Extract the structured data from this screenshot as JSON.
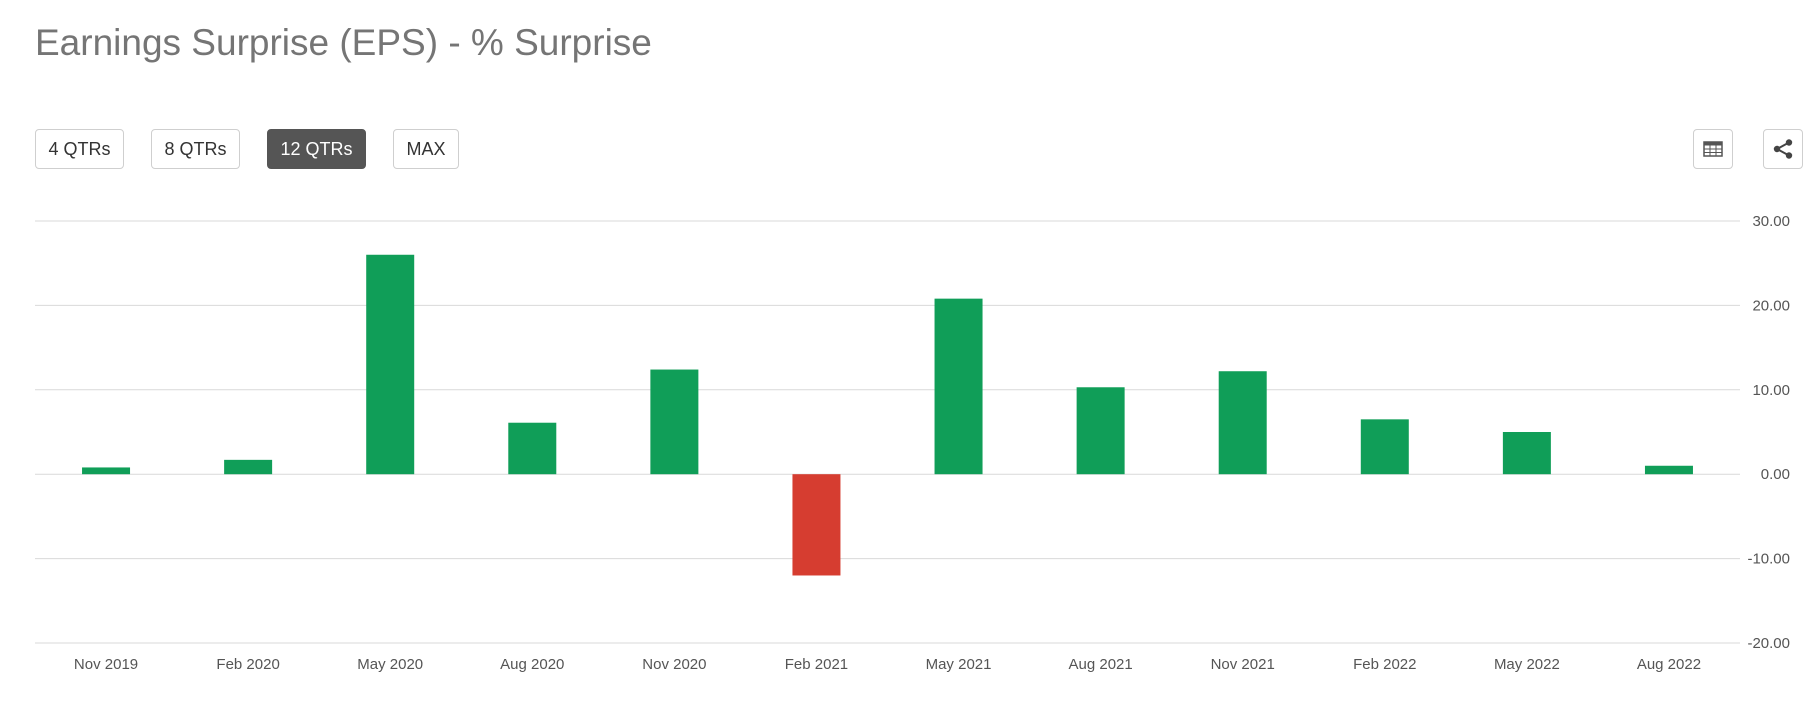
{
  "title": "Earnings Surprise (EPS) - % Surprise",
  "range_buttons": [
    {
      "label": "4 QTRs",
      "active": false
    },
    {
      "label": "8 QTRs",
      "active": false
    },
    {
      "label": "12 QTRs",
      "active": true
    },
    {
      "label": "MAX",
      "active": false
    }
  ],
  "icons": {
    "table": "table-icon",
    "share": "share-icon"
  },
  "colors": {
    "positive": "#109e58",
    "negative": "#d63d30",
    "active_button": "#555555"
  },
  "chart_data": {
    "type": "bar",
    "categories": [
      "Nov 2019",
      "Feb 2020",
      "May 2020",
      "Aug 2020",
      "Nov 2020",
      "Feb 2021",
      "May 2021",
      "Aug 2021",
      "Nov 2021",
      "Feb 2022",
      "May 2022",
      "Aug 2022"
    ],
    "values": [
      0.8,
      1.7,
      26.0,
      6.1,
      12.4,
      -12.0,
      20.8,
      10.3,
      12.2,
      6.5,
      5.0,
      1.0
    ],
    "yticks": [
      "30.00",
      "20.00",
      "10.00",
      "0.00",
      "-10.00",
      "-20.00"
    ],
    "ylim": [
      -20,
      30
    ],
    "grid": true,
    "title": "Earnings Surprise (EPS) - % Surprise",
    "xlabel": "",
    "ylabel": ""
  }
}
